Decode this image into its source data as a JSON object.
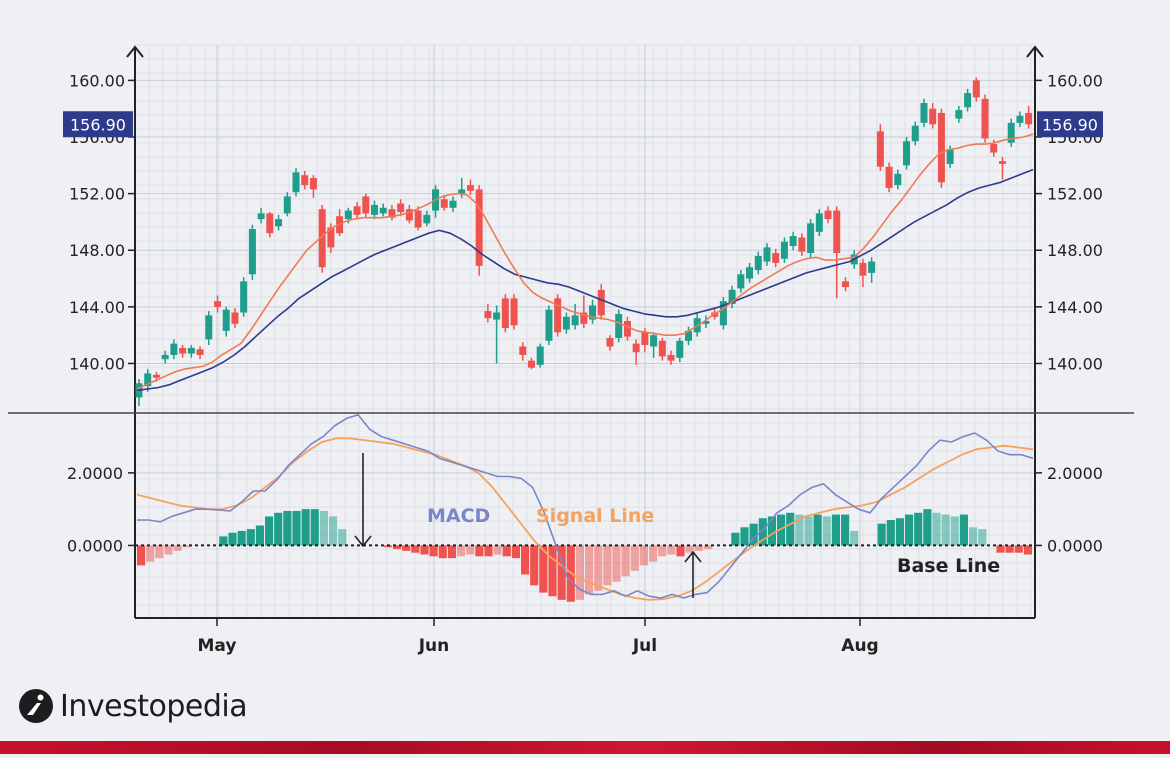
{
  "chart_data": {
    "type": "candlestick-macd",
    "price_panel": {
      "y_ticks": [
        "160.00",
        "156.00",
        "152.00",
        "148.00",
        "144.00",
        "140.00"
      ],
      "y_tick_values": [
        160,
        156,
        152,
        148,
        144,
        140
      ],
      "ylim": [
        136.5,
        162.5
      ],
      "last_price_label": "156.90",
      "last_price": 156.9,
      "candles": [
        [
          137.6,
          138.6,
          137.0,
          138.9
        ],
        [
          138.4,
          139.3,
          138.0,
          139.6
        ],
        [
          139.2,
          139.0,
          138.7,
          139.4
        ],
        [
          140.3,
          140.6,
          140.0,
          140.9
        ],
        [
          140.6,
          141.4,
          140.3,
          141.7
        ],
        [
          141.1,
          140.7,
          140.4,
          141.3
        ],
        [
          140.7,
          141.1,
          140.4,
          141.3
        ],
        [
          141.0,
          140.6,
          140.3,
          141.2
        ],
        [
          141.7,
          143.4,
          141.3,
          143.7
        ],
        [
          144.4,
          144.0,
          143.6,
          144.8
        ],
        [
          142.3,
          143.8,
          141.9,
          144.0
        ],
        [
          143.6,
          142.8,
          142.5,
          143.9
        ],
        [
          143.6,
          145.8,
          143.3,
          146.1
        ],
        [
          146.3,
          149.5,
          145.9,
          149.8
        ],
        [
          150.2,
          150.6,
          149.9,
          151.0
        ],
        [
          150.6,
          149.2,
          148.9,
          150.7
        ],
        [
          149.7,
          150.2,
          149.4,
          150.5
        ],
        [
          150.6,
          151.8,
          150.4,
          152.1
        ],
        [
          152.1,
          153.5,
          151.8,
          153.8
        ],
        [
          153.3,
          152.6,
          152.3,
          153.6
        ],
        [
          153.1,
          152.3,
          151.7,
          153.3
        ],
        [
          150.9,
          146.8,
          146.4,
          151.2
        ],
        [
          149.6,
          148.2,
          147.8,
          149.9
        ],
        [
          150.4,
          149.2,
          149.0,
          150.9
        ],
        [
          150.2,
          150.8,
          149.9,
          151.0
        ],
        [
          151.1,
          150.5,
          150.2,
          151.4
        ],
        [
          151.8,
          150.6,
          150.3,
          152.0
        ],
        [
          150.5,
          151.2,
          150.2,
          151.5
        ],
        [
          150.6,
          151.0,
          150.4,
          151.3
        ],
        [
          150.9,
          150.3,
          150.1,
          151.2
        ],
        [
          151.3,
          150.7,
          150.4,
          151.6
        ],
        [
          150.9,
          150.1,
          149.9,
          151.2
        ],
        [
          150.8,
          149.6,
          149.4,
          151.1
        ],
        [
          149.9,
          150.5,
          149.7,
          150.8
        ],
        [
          150.8,
          152.3,
          150.3,
          152.6
        ],
        [
          151.6,
          151.0,
          150.8,
          151.9
        ],
        [
          151.0,
          151.5,
          150.7,
          151.8
        ],
        [
          152.0,
          152.3,
          151.7,
          153.1
        ],
        [
          152.6,
          152.2,
          151.9,
          153.0
        ],
        [
          152.3,
          146.9,
          146.2,
          152.6
        ],
        [
          143.7,
          143.2,
          142.9,
          144.2
        ],
        [
          143.1,
          143.6,
          140.0,
          144.1
        ],
        [
          144.6,
          142.5,
          142.2,
          144.9
        ],
        [
          144.6,
          142.7,
          142.4,
          144.9
        ],
        [
          141.2,
          140.6,
          140.2,
          141.5
        ],
        [
          140.2,
          139.7,
          139.6,
          140.4
        ],
        [
          139.9,
          141.2,
          139.7,
          141.4
        ],
        [
          141.6,
          143.8,
          141.3,
          144.1
        ],
        [
          144.6,
          142.2,
          141.9,
          144.9
        ],
        [
          142.4,
          143.3,
          142.1,
          143.6
        ],
        [
          142.7,
          143.4,
          142.4,
          144.2
        ],
        [
          143.6,
          142.8,
          142.5,
          144.8
        ],
        [
          143.1,
          144.1,
          142.8,
          144.5
        ],
        [
          145.2,
          143.4,
          143.1,
          145.6
        ],
        [
          141.8,
          141.2,
          140.9,
          142.0
        ],
        [
          141.8,
          143.5,
          141.5,
          143.8
        ],
        [
          143.0,
          141.9,
          141.6,
          143.3
        ],
        [
          141.4,
          140.8,
          139.9,
          141.7
        ],
        [
          142.2,
          141.3,
          140.8,
          142.5
        ],
        [
          141.2,
          142.0,
          140.4,
          142.2
        ],
        [
          141.6,
          140.5,
          140.2,
          141.8
        ],
        [
          140.6,
          140.2,
          139.9,
          140.9
        ],
        [
          140.4,
          141.6,
          140.1,
          141.8
        ],
        [
          141.6,
          142.3,
          141.3,
          142.6
        ],
        [
          142.2,
          143.2,
          141.9,
          143.6
        ],
        [
          142.8,
          143.0,
          142.5,
          143.4
        ],
        [
          143.6,
          143.3,
          143.1,
          143.9
        ],
        [
          142.7,
          144.4,
          142.4,
          144.7
        ],
        [
          144.2,
          145.2,
          143.9,
          145.5
        ],
        [
          145.3,
          146.3,
          145.0,
          146.6
        ],
        [
          146.0,
          146.8,
          145.7,
          147.1
        ],
        [
          146.6,
          147.6,
          146.3,
          147.9
        ],
        [
          147.2,
          148.2,
          146.9,
          148.5
        ],
        [
          147.8,
          147.1,
          146.8,
          148.1
        ],
        [
          147.4,
          148.6,
          147.1,
          148.9
        ],
        [
          148.3,
          149.0,
          148.0,
          149.3
        ],
        [
          148.9,
          147.9,
          147.6,
          149.2
        ],
        [
          147.8,
          149.9,
          147.5,
          150.2
        ],
        [
          149.3,
          150.6,
          149.0,
          150.9
        ],
        [
          150.8,
          150.2,
          149.9,
          151.1
        ],
        [
          150.8,
          147.8,
          144.6,
          151.1
        ],
        [
          145.8,
          145.4,
          145.1,
          146.1
        ],
        [
          147.0,
          147.7,
          146.7,
          148.0
        ],
        [
          147.1,
          146.2,
          145.4,
          147.4
        ],
        [
          146.4,
          147.2,
          145.7,
          147.5
        ],
        [
          156.4,
          153.9,
          153.6,
          156.9
        ],
        [
          153.9,
          152.4,
          152.1,
          154.2
        ],
        [
          152.6,
          153.4,
          152.3,
          153.7
        ],
        [
          154.0,
          155.7,
          153.7,
          156.0
        ],
        [
          155.7,
          156.8,
          155.4,
          157.1
        ],
        [
          157.0,
          158.4,
          156.7,
          158.7
        ],
        [
          158.0,
          156.9,
          156.6,
          158.4
        ],
        [
          157.7,
          152.8,
          152.4,
          158.0
        ],
        [
          154.1,
          155.1,
          153.8,
          155.4
        ],
        [
          157.3,
          157.9,
          157.0,
          158.2
        ],
        [
          158.1,
          159.1,
          157.8,
          159.4
        ],
        [
          160.0,
          158.8,
          158.5,
          160.2
        ],
        [
          158.7,
          155.9,
          155.6,
          159.0
        ],
        [
          155.5,
          154.9,
          154.6,
          155.8
        ],
        [
          154.3,
          154.1,
          153.0,
          154.6
        ],
        [
          155.6,
          157.0,
          155.3,
          157.3
        ],
        [
          157.0,
          157.5,
          156.7,
          157.8
        ],
        [
          157.7,
          156.9,
          156.6,
          158.2
        ]
      ],
      "ema_fast": [
        138.2,
        138.5,
        138.8,
        139.1,
        139.4,
        139.6,
        139.7,
        139.8,
        140.1,
        140.6,
        141.0,
        141.4,
        142.3,
        143.3,
        144.3,
        145.3,
        146.2,
        147.1,
        148.0,
        148.6,
        149.2,
        149.7,
        150.0,
        150.2,
        150.3,
        150.3,
        150.3,
        150.4,
        150.5,
        150.7,
        151.0,
        151.3,
        151.7,
        151.9,
        152.0,
        151.9,
        151.3,
        150.2,
        149.0,
        147.8,
        146.7,
        145.7,
        145.0,
        144.6,
        144.3,
        144.0,
        143.7,
        143.5,
        143.3,
        143.2,
        143.1,
        142.9,
        142.6,
        142.3,
        142.2,
        142.1,
        142.0,
        142.0,
        142.1,
        142.5,
        142.9,
        143.4,
        143.8,
        144.3,
        144.8,
        145.3,
        145.7,
        146.1,
        146.5,
        146.9,
        147.2,
        147.4,
        147.5,
        147.3,
        147.3,
        147.4,
        147.5,
        148.1,
        148.9,
        149.8,
        150.7,
        151.5,
        152.4,
        153.3,
        154.1,
        154.8,
        155.1,
        155.2,
        155.4,
        155.5,
        155.5,
        155.6,
        155.8,
        155.9,
        156.0,
        156.2
      ],
      "ema_slow": [
        138.1,
        138.2,
        138.3,
        138.5,
        138.8,
        139.1,
        139.4,
        139.7,
        140.1,
        140.6,
        141.2,
        141.9,
        142.6,
        143.3,
        143.9,
        144.6,
        145.1,
        145.6,
        146.1,
        146.5,
        146.9,
        147.3,
        147.7,
        148.0,
        148.3,
        148.6,
        148.9,
        149.2,
        149.4,
        149.2,
        148.8,
        148.3,
        147.7,
        147.2,
        146.7,
        146.3,
        146.1,
        145.9,
        145.7,
        145.6,
        145.4,
        145.1,
        144.8,
        144.5,
        144.2,
        143.9,
        143.7,
        143.5,
        143.4,
        143.3,
        143.3,
        143.4,
        143.6,
        143.8,
        144.0,
        144.3,
        144.6,
        144.9,
        145.2,
        145.5,
        145.8,
        146.1,
        146.4,
        146.6,
        146.8,
        147.0,
        147.2,
        147.6,
        148.0,
        148.5,
        149.0,
        149.5,
        150.0,
        150.4,
        150.8,
        151.2,
        151.7,
        152.1,
        152.4,
        152.6,
        152.8,
        153.1,
        153.4,
        153.7
      ]
    },
    "macd_panel": {
      "y_ticks": [
        "2.0000",
        "0.0000"
      ],
      "y_tick_values": [
        2,
        0
      ],
      "ylim": [
        -2.0,
        3.65
      ],
      "macd_line": [
        0.7,
        0.7,
        0.65,
        0.8,
        0.9,
        1.0,
        1.0,
        0.98,
        0.95,
        1.2,
        1.5,
        1.5,
        1.8,
        2.2,
        2.5,
        2.8,
        3.0,
        3.3,
        3.5,
        3.6,
        3.2,
        3.0,
        2.9,
        2.8,
        2.7,
        2.6,
        2.4,
        2.3,
        2.2,
        2.1,
        2.0,
        1.9,
        1.9,
        1.85,
        1.6,
        0.9,
        0.0,
        -0.9,
        -1.2,
        -1.35,
        -1.35,
        -1.25,
        -1.4,
        -1.25,
        -1.4,
        -1.45,
        -1.35,
        -1.45,
        -1.35,
        -1.3,
        -1.0,
        -0.6,
        -0.2,
        0.2,
        0.5,
        0.9,
        1.1,
        1.4,
        1.6,
        1.7,
        1.4,
        1.2,
        1.0,
        0.9,
        1.3,
        1.6,
        1.9,
        2.2,
        2.6,
        2.9,
        2.85,
        3.0,
        3.1,
        2.9,
        2.6,
        2.5,
        2.5,
        2.4
      ],
      "signal_line": [
        1.4,
        1.3,
        1.2,
        1.1,
        1.05,
        1.0,
        1.0,
        1.1,
        1.3,
        1.6,
        1.9,
        2.3,
        2.6,
        2.85,
        2.95,
        2.95,
        2.9,
        2.85,
        2.8,
        2.7,
        2.6,
        2.5,
        2.35,
        2.2,
        2.0,
        1.6,
        1.1,
        0.6,
        0.1,
        -0.3,
        -0.6,
        -0.9,
        -1.05,
        -1.2,
        -1.35,
        -1.45,
        -1.5,
        -1.48,
        -1.4,
        -1.25,
        -1.0,
        -0.7,
        -0.4,
        -0.1,
        0.15,
        0.4,
        0.6,
        0.8,
        0.9,
        1.0,
        1.05,
        1.1,
        1.2,
        1.4,
        1.6,
        1.85,
        2.1,
        2.3,
        2.5,
        2.65,
        2.7,
        2.75,
        2.7,
        2.65
      ],
      "histogram": [
        -0.55,
        -0.45,
        -0.35,
        -0.25,
        -0.15,
        -0.05,
        0,
        0,
        0,
        0.25,
        0.35,
        0.4,
        0.45,
        0.55,
        0.8,
        0.9,
        0.95,
        0.95,
        1.0,
        1.0,
        0.95,
        0.8,
        0.45,
        0,
        0,
        0,
        0,
        -0.05,
        -0.1,
        -0.15,
        -0.2,
        -0.25,
        -0.3,
        -0.35,
        -0.35,
        -0.3,
        -0.25,
        -0.3,
        -0.3,
        -0.25,
        -0.3,
        -0.35,
        -0.8,
        -1.1,
        -1.3,
        -1.4,
        -1.5,
        -1.55,
        -1.5,
        -1.35,
        -1.25,
        -1.1,
        -1.0,
        -0.85,
        -0.7,
        -0.55,
        -0.45,
        -0.3,
        -0.25,
        -0.3,
        -0.2,
        -0.15,
        -0.1,
        0,
        0,
        0.35,
        0.5,
        0.6,
        0.75,
        0.8,
        0.85,
        0.9,
        0.85,
        0.8,
        0.85,
        0.8,
        0.85,
        0.85,
        0.4,
        0,
        0,
        0.6,
        0.7,
        0.75,
        0.85,
        0.9,
        1.0,
        0.9,
        0.85,
        0.8,
        0.85,
        0.5,
        0.45,
        0,
        -0.2,
        -0.2,
        -0.2,
        -0.25
      ],
      "labels": {
        "macd": "MACD",
        "signal": "Signal Line",
        "base": "Base Line"
      }
    },
    "x_ticks": [
      "May",
      "Jun",
      "Jul",
      "Aug"
    ],
    "colors": {
      "up": "#1e9e8b",
      "down": "#ef5350",
      "ema_fast": "#f07a55",
      "ema_slow": "#2e3a8c",
      "macd": "#7b86c9",
      "signal": "#f5a25d",
      "hist_pos": "#1e9e8b",
      "hist_neg": "#ef5350",
      "price_box": "#2e3a8c"
    }
  },
  "brand": {
    "name": "Investopedia"
  }
}
